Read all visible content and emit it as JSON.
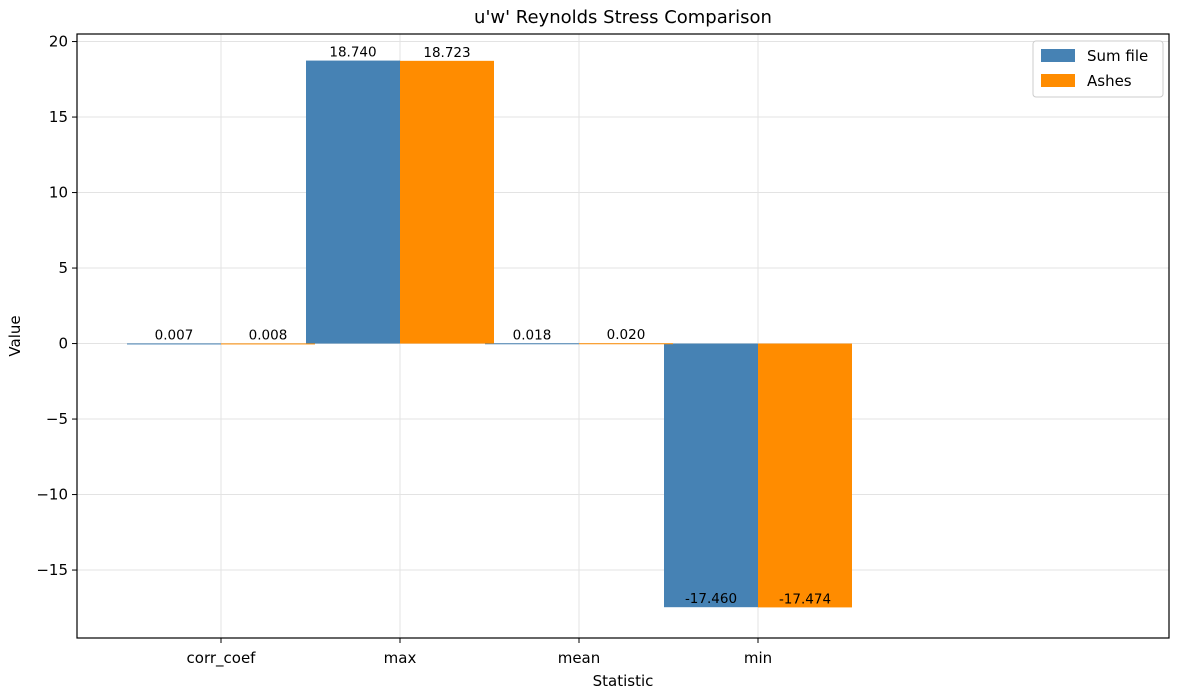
{
  "chart_data": {
    "type": "bar",
    "title": "u'w' Reynolds Stress Comparison",
    "xlabel": "Statistic",
    "ylabel": "Value",
    "categories": [
      "corr_coef",
      "max",
      "mean",
      "min"
    ],
    "series": [
      {
        "name": "Sum file",
        "color": "#4682b4",
        "values": [
          0.007,
          18.74,
          0.018,
          -17.46
        ],
        "labels": [
          "0.007",
          "18.740",
          "0.018",
          "-17.460"
        ]
      },
      {
        "name": "Ashes",
        "color": "#ff8c00",
        "values": [
          0.008,
          18.723,
          0.02,
          -17.474
        ],
        "labels": [
          "0.008",
          "18.723",
          "0.020",
          "-17.474"
        ]
      }
    ],
    "ylim": [
      -19.5,
      20.5
    ],
    "yticks": [
      -15,
      -10,
      -5,
      0,
      5,
      10,
      15,
      20
    ],
    "ytick_labels": [
      "−15",
      "−10",
      "−5",
      "0",
      "5",
      "10",
      "15",
      "20"
    ],
    "grid": true,
    "legend_position": "top-right"
  }
}
